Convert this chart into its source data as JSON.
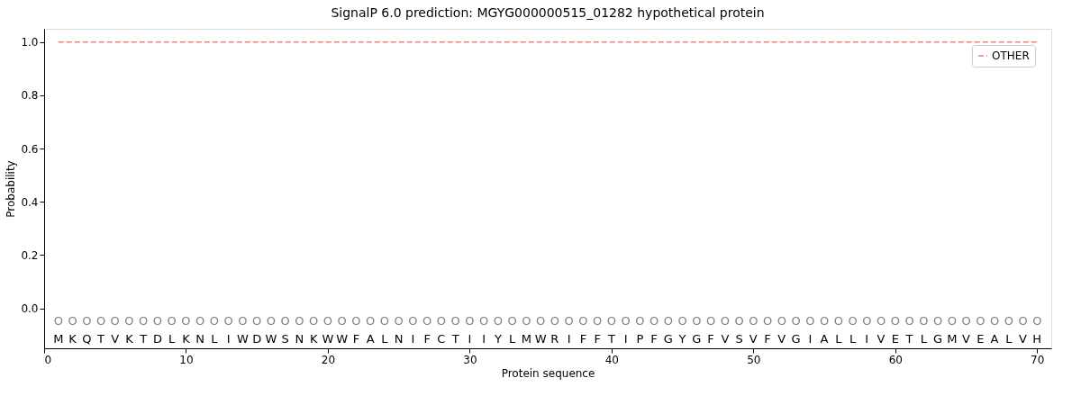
{
  "chart_data": {
    "type": "line",
    "title": "SignalP 6.0 prediction: MGYG000000515_01282 hypothetical protein",
    "xlabel": "Protein sequence",
    "ylabel": "Probability",
    "x": [
      1,
      2,
      3,
      4,
      5,
      6,
      7,
      8,
      9,
      10,
      11,
      12,
      13,
      14,
      15,
      16,
      17,
      18,
      19,
      20,
      21,
      22,
      23,
      24,
      25,
      26,
      27,
      28,
      29,
      30,
      31,
      32,
      33,
      34,
      35,
      36,
      37,
      38,
      39,
      40,
      41,
      42,
      43,
      44,
      45,
      46,
      47,
      48,
      49,
      50,
      51,
      52,
      53,
      54,
      55,
      56,
      57,
      58,
      59,
      60,
      61,
      62,
      63,
      64,
      65,
      66,
      67,
      68,
      69,
      70
    ],
    "series": [
      {
        "name": "OTHER",
        "color": "#f08080",
        "line_style": "dashed",
        "values": [
          1,
          1,
          1,
          1,
          1,
          1,
          1,
          1,
          1,
          1,
          1,
          1,
          1,
          1,
          1,
          1,
          1,
          1,
          1,
          1,
          1,
          1,
          1,
          1,
          1,
          1,
          1,
          1,
          1,
          1,
          1,
          1,
          1,
          1,
          1,
          1,
          1,
          1,
          1,
          1,
          1,
          1,
          1,
          1,
          1,
          1,
          1,
          1,
          1,
          1,
          1,
          1,
          1,
          1,
          1,
          1,
          1,
          1,
          1,
          1,
          1,
          1,
          1,
          1,
          1,
          1,
          1,
          1,
          1,
          1
        ]
      }
    ],
    "xlim": [
      0,
      71
    ],
    "xticks": [
      0,
      10,
      20,
      30,
      40,
      50,
      60,
      70
    ],
    "ylim": [
      -0.15,
      1.05
    ],
    "yticks": [
      {
        "value": 0,
        "label": "0.0"
      },
      0.2,
      0.4,
      0.6,
      0.8,
      {
        "value": 1,
        "label": "1.0"
      }
    ],
    "annotations": [
      "O",
      "O",
      "O",
      "O",
      "O",
      "O",
      "O",
      "O",
      "O",
      "O",
      "O",
      "O",
      "O",
      "O",
      "O",
      "O",
      "O",
      "O",
      "O",
      "O",
      "O",
      "O",
      "O",
      "O",
      "O",
      "O",
      "O",
      "O",
      "O",
      "O",
      "O",
      "O",
      "O",
      "O",
      "O",
      "O",
      "O",
      "O",
      "O",
      "O",
      "O",
      "O",
      "O",
      "O",
      "O",
      "O",
      "O",
      "O",
      "O",
      "O",
      "O",
      "O",
      "O",
      "O",
      "O",
      "O",
      "O",
      "O",
      "O",
      "O",
      "O",
      "O",
      "O",
      "O",
      "O",
      "O",
      "O",
      "O",
      "O",
      "O",
      "M",
      "K",
      "Q",
      "T",
      "V",
      "K",
      "T",
      "D",
      "L",
      "K",
      "N",
      "L",
      "I",
      "W",
      "D",
      "W",
      "S",
      "N",
      "K",
      "W",
      "W",
      "F",
      "A",
      "L",
      "N",
      "I",
      "F",
      "C",
      "T",
      "I",
      "I",
      "Y",
      "L",
      "M",
      "W",
      "R",
      "I",
      "F",
      "F",
      "T",
      "I",
      "P",
      "F",
      "G",
      "Y",
      "G",
      "F",
      "V",
      "S",
      "V",
      "F",
      "V",
      "G",
      "I",
      "A",
      "L",
      "L",
      "I",
      "V",
      "E",
      "T",
      "L",
      "G",
      "M",
      "V",
      "E",
      "A",
      "L",
      "V",
      "H"
    ],
    "grid": false,
    "legend": "top right"
  }
}
